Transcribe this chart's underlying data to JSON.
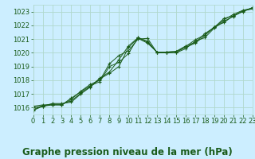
{
  "title": "Graphe pression niveau de la mer (hPa)",
  "background_color": "#cceeff",
  "grid_color": "#b0d8cc",
  "line_color": "#1a5c1a",
  "xlim": [
    0,
    23
  ],
  "ylim": [
    1015.5,
    1023.5
  ],
  "yticks": [
    1016,
    1017,
    1018,
    1019,
    1020,
    1021,
    1022,
    1023
  ],
  "xticks": [
    0,
    1,
    2,
    3,
    4,
    5,
    6,
    7,
    8,
    9,
    10,
    11,
    12,
    13,
    14,
    15,
    16,
    17,
    18,
    19,
    20,
    21,
    22,
    23
  ],
  "series": [
    [
      1015.8,
      1016.1,
      1016.3,
      1016.3,
      1016.4,
      1017.0,
      1017.5,
      1018.1,
      1018.5,
      1019.0,
      1020.4,
      1021.05,
      1020.7,
      1020.05,
      1020.05,
      1020.1,
      1020.5,
      1020.75,
      1021.4,
      1021.85,
      1022.4,
      1022.8,
      1023.1,
      1023.25
    ],
    [
      1015.85,
      1016.15,
      1016.25,
      1016.25,
      1016.5,
      1017.05,
      1017.55,
      1018.15,
      1018.6,
      1019.5,
      1020.5,
      1021.1,
      1020.75,
      1020.05,
      1020.05,
      1020.1,
      1020.4,
      1020.7,
      1021.25,
      1021.9,
      1022.2,
      1022.7,
      1023.0,
      1023.3
    ],
    [
      1016.1,
      1016.2,
      1016.2,
      1016.2,
      1016.6,
      1017.2,
      1017.7,
      1018.0,
      1019.2,
      1019.8,
      1020.15,
      1021.0,
      1021.05,
      1020.0,
      1020.0,
      1020.0,
      1020.3,
      1020.85,
      1021.1,
      1021.8,
      1022.3,
      1022.65,
      1023.05,
      1023.25
    ],
    [
      1016.0,
      1016.1,
      1016.2,
      1016.2,
      1016.7,
      1017.15,
      1017.6,
      1017.9,
      1019.0,
      1019.3,
      1019.95,
      1021.1,
      1020.85,
      1020.0,
      1020.0,
      1020.0,
      1020.45,
      1020.95,
      1021.3,
      1021.85,
      1022.5,
      1022.7,
      1023.05,
      1023.2
    ]
  ],
  "title_fontsize": 8.5,
  "tick_fontsize": 6.0,
  "title_color": "#1a5c1a"
}
